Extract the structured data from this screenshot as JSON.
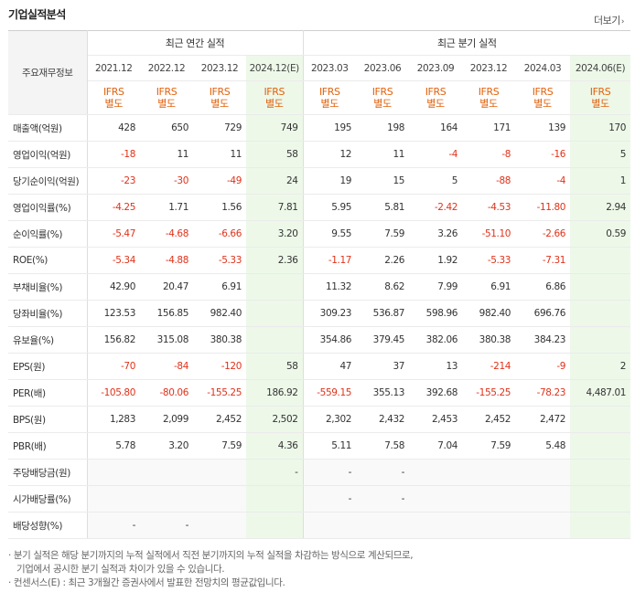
{
  "page": {
    "title": "기업실적분석",
    "more_label": "더보기"
  },
  "table": {
    "corner_label": "주요재무정보",
    "group_annual": "최근 연간 실적",
    "group_quarter": "최근 분기 실적",
    "periods": [
      "2021.12",
      "2022.12",
      "2023.12",
      "2024.12(E)",
      "2023.03",
      "2023.06",
      "2023.09",
      "2023.12",
      "2024.03",
      "2024.06(E)"
    ],
    "ifrs_top": "IFRS",
    "ifrs_bottom": "별도",
    "rows": [
      {
        "label": "매출액(억원)",
        "values": [
          "428",
          "650",
          "729",
          "749",
          "195",
          "198",
          "164",
          "171",
          "139",
          "170"
        ]
      },
      {
        "label": "영업이익(억원)",
        "values": [
          "-18",
          "11",
          "11",
          "58",
          "12",
          "11",
          "-4",
          "-8",
          "-16",
          "5"
        ]
      },
      {
        "label": "당기순이익(억원)",
        "values": [
          "-23",
          "-30",
          "-49",
          "24",
          "19",
          "15",
          "5",
          "-88",
          "-4",
          "1"
        ]
      },
      {
        "label": "영업이익률(%)",
        "values": [
          "-4.25",
          "1.71",
          "1.56",
          "7.81",
          "5.95",
          "5.81",
          "-2.42",
          "-4.53",
          "-11.80",
          "2.94"
        ]
      },
      {
        "label": "순이익률(%)",
        "values": [
          "-5.47",
          "-4.68",
          "-6.66",
          "3.20",
          "9.55",
          "7.59",
          "3.26",
          "-51.10",
          "-2.66",
          "0.59"
        ]
      },
      {
        "label": "ROE(%)",
        "values": [
          "-5.34",
          "-4.88",
          "-5.33",
          "2.36",
          "-1.17",
          "2.26",
          "1.92",
          "-5.33",
          "-7.31",
          ""
        ]
      },
      {
        "label": "부채비율(%)",
        "values": [
          "42.90",
          "20.47",
          "6.91",
          "",
          "11.32",
          "8.62",
          "7.99",
          "6.91",
          "6.86",
          ""
        ]
      },
      {
        "label": "당좌비율(%)",
        "values": [
          "123.53",
          "156.85",
          "982.40",
          "",
          "309.23",
          "536.87",
          "598.96",
          "982.40",
          "696.76",
          ""
        ]
      },
      {
        "label": "유보율(%)",
        "values": [
          "156.82",
          "315.08",
          "380.38",
          "",
          "354.86",
          "379.45",
          "382.06",
          "380.38",
          "384.23",
          ""
        ]
      },
      {
        "label": "EPS(원)",
        "values": [
          "-70",
          "-84",
          "-120",
          "58",
          "47",
          "37",
          "13",
          "-214",
          "-9",
          "2"
        ]
      },
      {
        "label": "PER(배)",
        "values": [
          "-105.80",
          "-80.06",
          "-155.25",
          "186.92",
          "-559.15",
          "355.13",
          "392.68",
          "-155.25",
          "-78.23",
          "4,487.01"
        ]
      },
      {
        "label": "BPS(원)",
        "values": [
          "1,283",
          "2,099",
          "2,452",
          "2,502",
          "2,302",
          "2,432",
          "2,453",
          "2,452",
          "2,472",
          ""
        ]
      },
      {
        "label": "PBR(배)",
        "values": [
          "5.78",
          "3.20",
          "7.59",
          "4.36",
          "5.11",
          "7.58",
          "7.04",
          "7.59",
          "5.48",
          ""
        ]
      },
      {
        "label": "주당배당금(원)",
        "values": [
          "",
          "",
          "",
          "-",
          "-",
          "-",
          "",
          "",
          "",
          ""
        ]
      },
      {
        "label": "시가배당률(%)",
        "values": [
          "",
          "",
          "",
          "",
          "-",
          "-",
          "",
          "",
          "",
          ""
        ]
      },
      {
        "label": "배당성향(%)",
        "values": [
          "-",
          "-",
          "",
          "",
          "",
          "",
          "",
          "",
          "",
          ""
        ]
      }
    ]
  },
  "notes": {
    "line1": "· 분기 실적은 해당 분기까지의 누적 실적에서 직전 분기까지의 누적 실적을 차감하는 방식으로 계산되므로,",
    "line2": "기업에서 공시한 분기 실적과 차이가 있을 수 있습니다.",
    "line3": "· 컨센서스(E) : 최근 3개월간 증권사에서 발표한 전망치의 평균값입니다."
  },
  "colors": {
    "negative": "#e0321a",
    "ifrs": "#e2620d",
    "estimate_bg": "#edf8e9"
  }
}
